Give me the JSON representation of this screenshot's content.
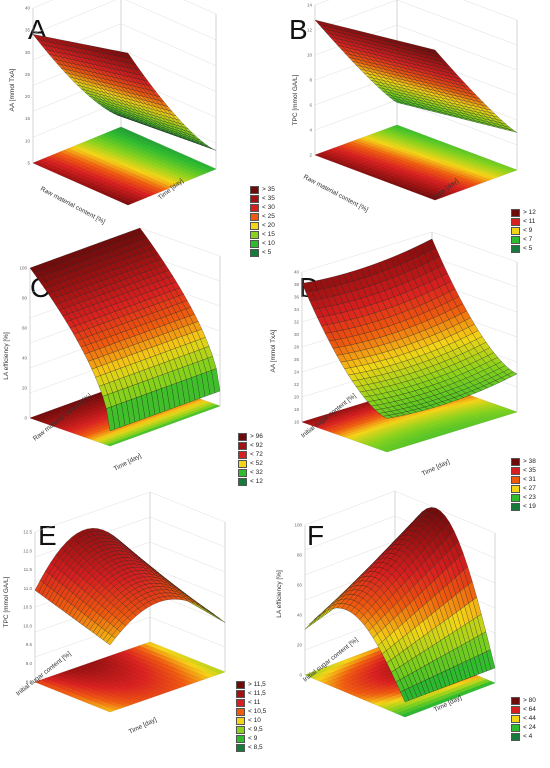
{
  "chart_data": [
    {
      "type": "surface3d",
      "panel_label": "A",
      "zlabel": "AA [mmol TxA]",
      "xlabel": "Raw material content [%]",
      "ylabel": "Time [day]",
      "zticks": [
        "5",
        "10",
        "15",
        "20",
        "25",
        "30",
        "35",
        "40"
      ],
      "zlim": [
        1,
        40
      ],
      "legend": [
        {
          "label": "> 35",
          "color": "#6e0a0a"
        },
        {
          "label": "< 35",
          "color": "#a31212"
        },
        {
          "label": "< 30",
          "color": "#d81f1f"
        },
        {
          "label": "< 25",
          "color": "#ee5a0e"
        },
        {
          "label": "< 20",
          "color": "#f4d416"
        },
        {
          "label": "< 15",
          "color": "#8ad21b"
        },
        {
          "label": "< 10",
          "color": "#2ebb2e"
        },
        {
          "label": "< 5",
          "color": "#157a3a"
        }
      ]
    },
    {
      "type": "surface3d",
      "panel_label": "B",
      "zlabel": "TPC [mmol GA/L]",
      "xlabel": "Raw material content [%]",
      "ylabel": "Time [day]",
      "zticks": [
        "2",
        "4",
        "6",
        "8",
        "10",
        "12",
        "14"
      ],
      "zlim": [
        2,
        14
      ],
      "legend": [
        {
          "label": "> 12",
          "color": "#6e0a0a"
        },
        {
          "label": "< 11",
          "color": "#d81f1f"
        },
        {
          "label": "< 9",
          "color": "#f4d416"
        },
        {
          "label": "< 7",
          "color": "#2ebb2e"
        },
        {
          "label": "< 5",
          "color": "#157a3a"
        }
      ]
    },
    {
      "type": "surface3d",
      "panel_label": "C",
      "zlabel": "LA efficiency [%]",
      "xlabel": "Raw material content [%]",
      "ylabel": "Time [day]",
      "zticks": [
        "0",
        "20",
        "40",
        "60",
        "80",
        "100"
      ],
      "zlim": [
        0,
        100
      ],
      "legend": [
        {
          "label": "> 96",
          "color": "#6e0a0a"
        },
        {
          "label": "< 92",
          "color": "#a31212"
        },
        {
          "label": "< 72",
          "color": "#d81f1f"
        },
        {
          "label": "< 52",
          "color": "#f4d416"
        },
        {
          "label": "< 32",
          "color": "#2ebb2e"
        },
        {
          "label": "< 12",
          "color": "#157a3a"
        }
      ]
    },
    {
      "type": "surface3d",
      "panel_label": "D",
      "zlabel": "AA [mmol TxA]",
      "xlabel": "Initial sugar content [%]",
      "ylabel": "Time [day]",
      "zticks": [
        "16",
        "18",
        "20",
        "22",
        "24",
        "26",
        "28",
        "30",
        "32",
        "34",
        "36",
        "38",
        "40"
      ],
      "zlim": [
        16,
        40
      ],
      "legend": [
        {
          "label": "> 38",
          "color": "#6e0a0a"
        },
        {
          "label": "< 35",
          "color": "#d81f1f"
        },
        {
          "label": "< 31",
          "color": "#ee5a0e"
        },
        {
          "label": "< 27",
          "color": "#f4d416"
        },
        {
          "label": "< 23",
          "color": "#2ebb2e"
        },
        {
          "label": "< 19",
          "color": "#157a3a"
        }
      ]
    },
    {
      "type": "surface3d",
      "panel_label": "E",
      "zlabel": "TPC [mmol GA/L]",
      "xlabel": "Initial sugar content [%]",
      "ylabel": "Time [day]",
      "zticks": [
        "8.5",
        "9.0",
        "9.5",
        "10.0",
        "10.5",
        "11.0",
        "11.5",
        "12.0",
        "12.5"
      ],
      "zlim": [
        8.5,
        12.5
      ],
      "legend": [
        {
          "label": "> 11,5",
          "color": "#6e0a0a"
        },
        {
          "label": "< 11,5",
          "color": "#a31212"
        },
        {
          "label": "< 11",
          "color": "#d81f1f"
        },
        {
          "label": "< 10,5",
          "color": "#ee5a0e"
        },
        {
          "label": "< 10",
          "color": "#f4d416"
        },
        {
          "label": "< 9,5",
          "color": "#8ad21b"
        },
        {
          "label": "< 9",
          "color": "#2ebb2e"
        },
        {
          "label": "< 8,5",
          "color": "#157a3a"
        }
      ]
    },
    {
      "type": "surface3d",
      "panel_label": "F",
      "zlabel": "LA efficiency [%]",
      "xlabel": "Initial sugar content [%]",
      "ylabel": "Time [day]",
      "zticks": [
        "0",
        "20",
        "40",
        "60",
        "80",
        "100"
      ],
      "zlim": [
        0,
        100
      ],
      "legend": [
        {
          "label": "> 80",
          "color": "#6e0a0a"
        },
        {
          "label": "< 64",
          "color": "#d81f1f"
        },
        {
          "label": "< 44",
          "color": "#f4d416"
        },
        {
          "label": "< 24",
          "color": "#2ebb2e"
        },
        {
          "label": "< 4",
          "color": "#157a3a"
        }
      ]
    }
  ]
}
